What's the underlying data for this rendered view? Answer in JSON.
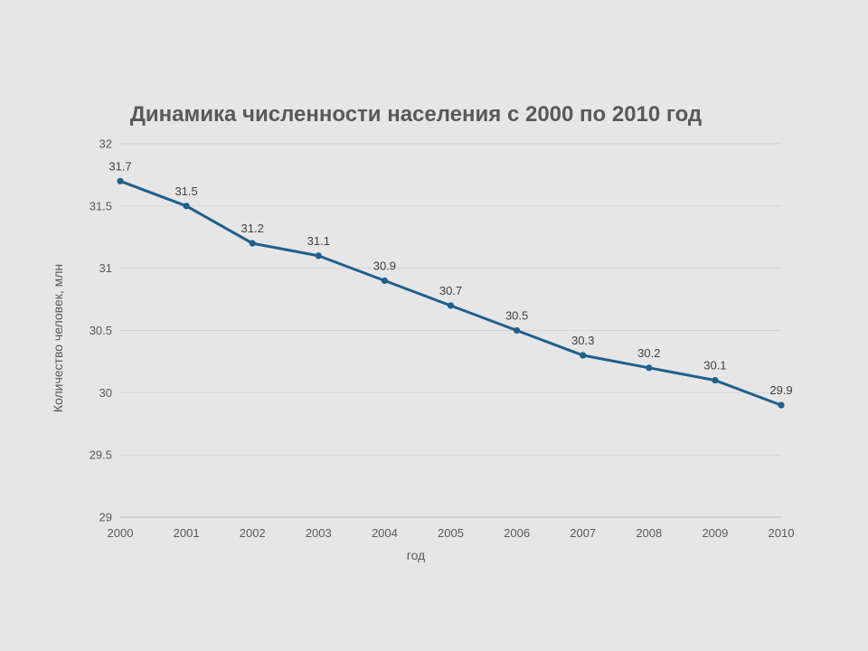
{
  "chart_data": {
    "type": "line",
    "title": "Динамика численности населения с 2000 по 2010 год",
    "xlabel": "год",
    "ylabel": "Количество человек, млн",
    "ylim": [
      29,
      32
    ],
    "y_ticks": [
      "29",
      "29.5",
      "30",
      "30.5",
      "31",
      "31.5",
      "32"
    ],
    "y_tick_values": [
      29,
      29.5,
      30,
      30.5,
      31,
      31.5,
      32
    ],
    "categories": [
      "2000",
      "2001",
      "2002",
      "2003",
      "2004",
      "2005",
      "2006",
      "2007",
      "2008",
      "2009",
      "2010"
    ],
    "series": [
      {
        "values": [
          31.7,
          31.5,
          31.2,
          31.1,
          30.9,
          30.7,
          30.5,
          30.3,
          30.2,
          30.1,
          29.9
        ],
        "labels": [
          "31.7",
          "31.5",
          "31.2",
          "31.1",
          "30.9",
          "30.7",
          "30.5",
          "30.3",
          "30.2",
          "30.1",
          "29.9"
        ],
        "color": "#1f5f8b"
      }
    ],
    "grid": true,
    "legend": "none"
  }
}
